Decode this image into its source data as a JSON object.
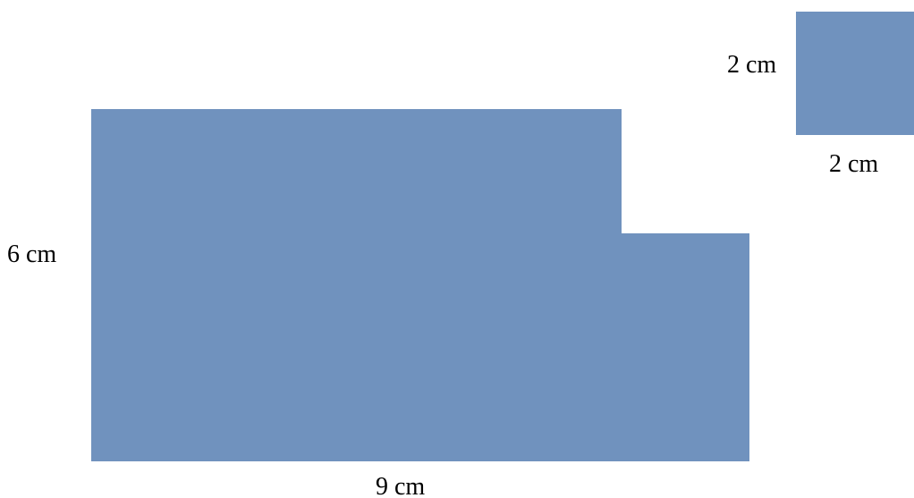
{
  "diagram": {
    "shape_color": "#7092be",
    "large_shape": {
      "height_label": "6 cm",
      "width_label": "9 cm"
    },
    "small_square": {
      "side_label": "2 cm",
      "bottom_label": "2 cm"
    }
  }
}
